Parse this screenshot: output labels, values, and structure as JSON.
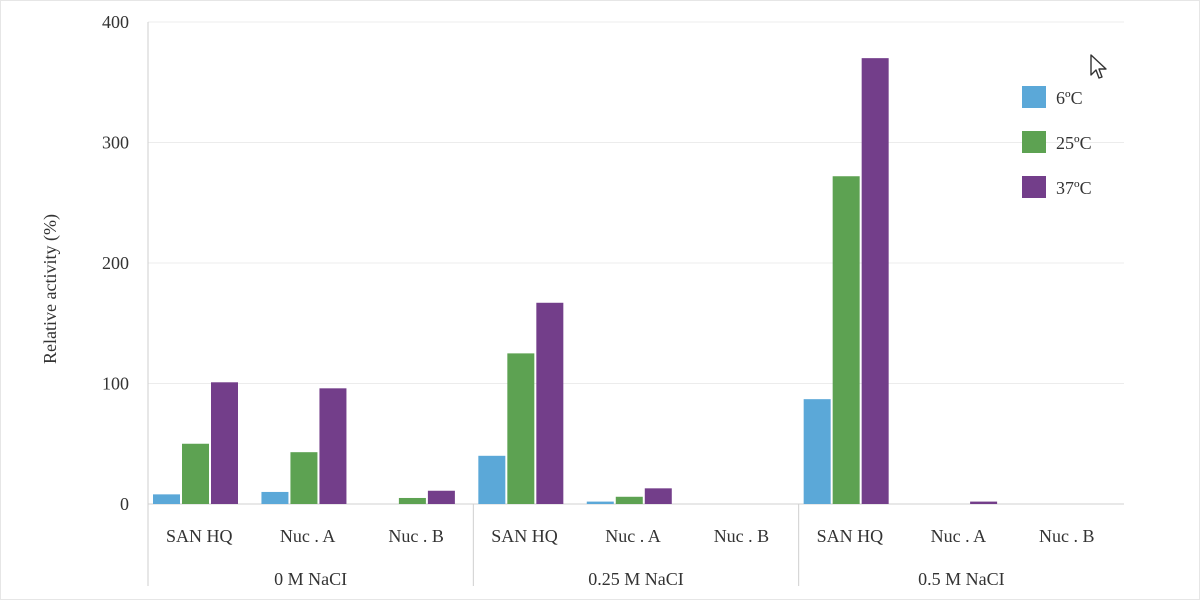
{
  "chart_data": {
    "type": "bar",
    "ylabel": "Relative activity (%)",
    "ylim": [
      0,
      400
    ],
    "yticks": [
      0,
      100,
      200,
      300,
      400
    ],
    "grid": true,
    "legend_position": "top-right",
    "groups": [
      {
        "label": "0 M NaCI",
        "categories": [
          "SAN HQ",
          "Nuc . A",
          "Nuc . B"
        ]
      },
      {
        "label": "0.25 M NaCI",
        "categories": [
          "SAN HQ",
          "Nuc . A",
          "Nuc . B"
        ]
      },
      {
        "label": "0.5 M NaCI",
        "categories": [
          "SAN HQ",
          "Nuc . A",
          "Nuc . B"
        ]
      }
    ],
    "series": [
      {
        "name": "6ºC",
        "color": "#5ba8d8",
        "values": [
          8,
          10,
          0,
          40,
          2,
          0,
          87,
          0,
          0
        ]
      },
      {
        "name": "25ºC",
        "color": "#5da252",
        "values": [
          50,
          43,
          5,
          125,
          6,
          0,
          272,
          0,
          0
        ]
      },
      {
        "name": "37ºC",
        "color": "#733e8a",
        "values": [
          101,
          96,
          11,
          167,
          13,
          0,
          370,
          2,
          0
        ]
      }
    ]
  }
}
